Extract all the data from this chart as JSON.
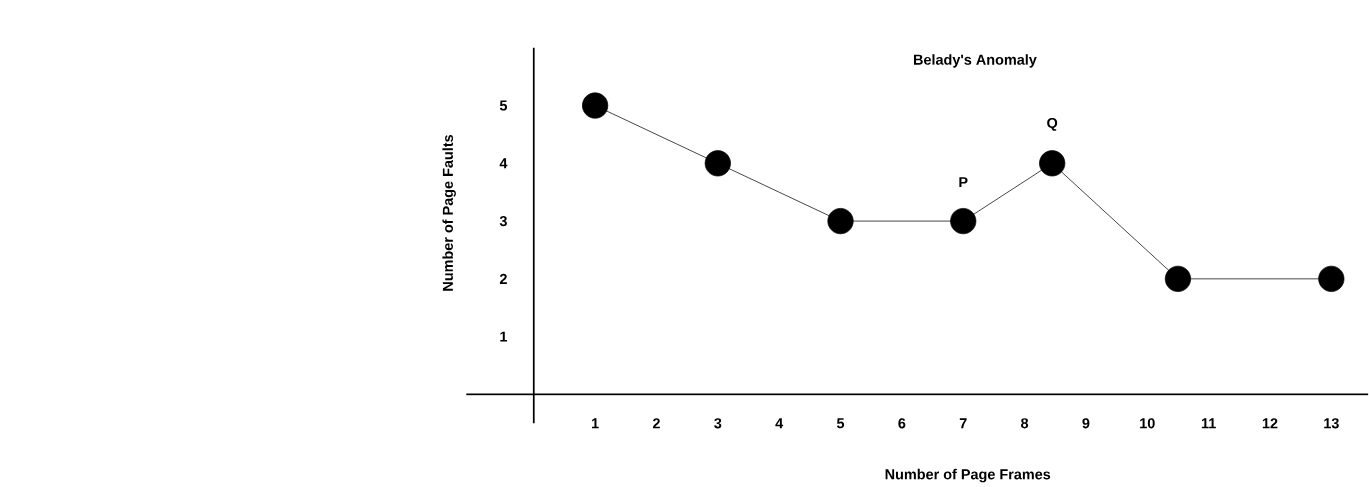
{
  "chart_data": {
    "type": "line",
    "title": "Belady's Anomaly",
    "xlabel": "Number of Page Frames",
    "ylabel": "Number of Page Faults",
    "x": [
      1,
      3,
      5,
      7,
      8.45,
      10.5,
      13
    ],
    "values": [
      5,
      4,
      3,
      3,
      4,
      2,
      2
    ],
    "color": "#000000",
    "marker": "circle",
    "line_style": "solid",
    "xlim": [
      -1.1,
      13.6
    ],
    "ylim": [
      -0.5,
      6
    ],
    "xticks": [
      1,
      2,
      3,
      4,
      5,
      6,
      7,
      8,
      9,
      10,
      11,
      12,
      13
    ],
    "yticks": [
      1,
      2,
      3,
      4,
      5
    ],
    "annotations": [
      {
        "text": "P",
        "x": 7,
        "y": 3
      },
      {
        "text": "Q",
        "x": 8.45,
        "y": 4
      }
    ]
  }
}
